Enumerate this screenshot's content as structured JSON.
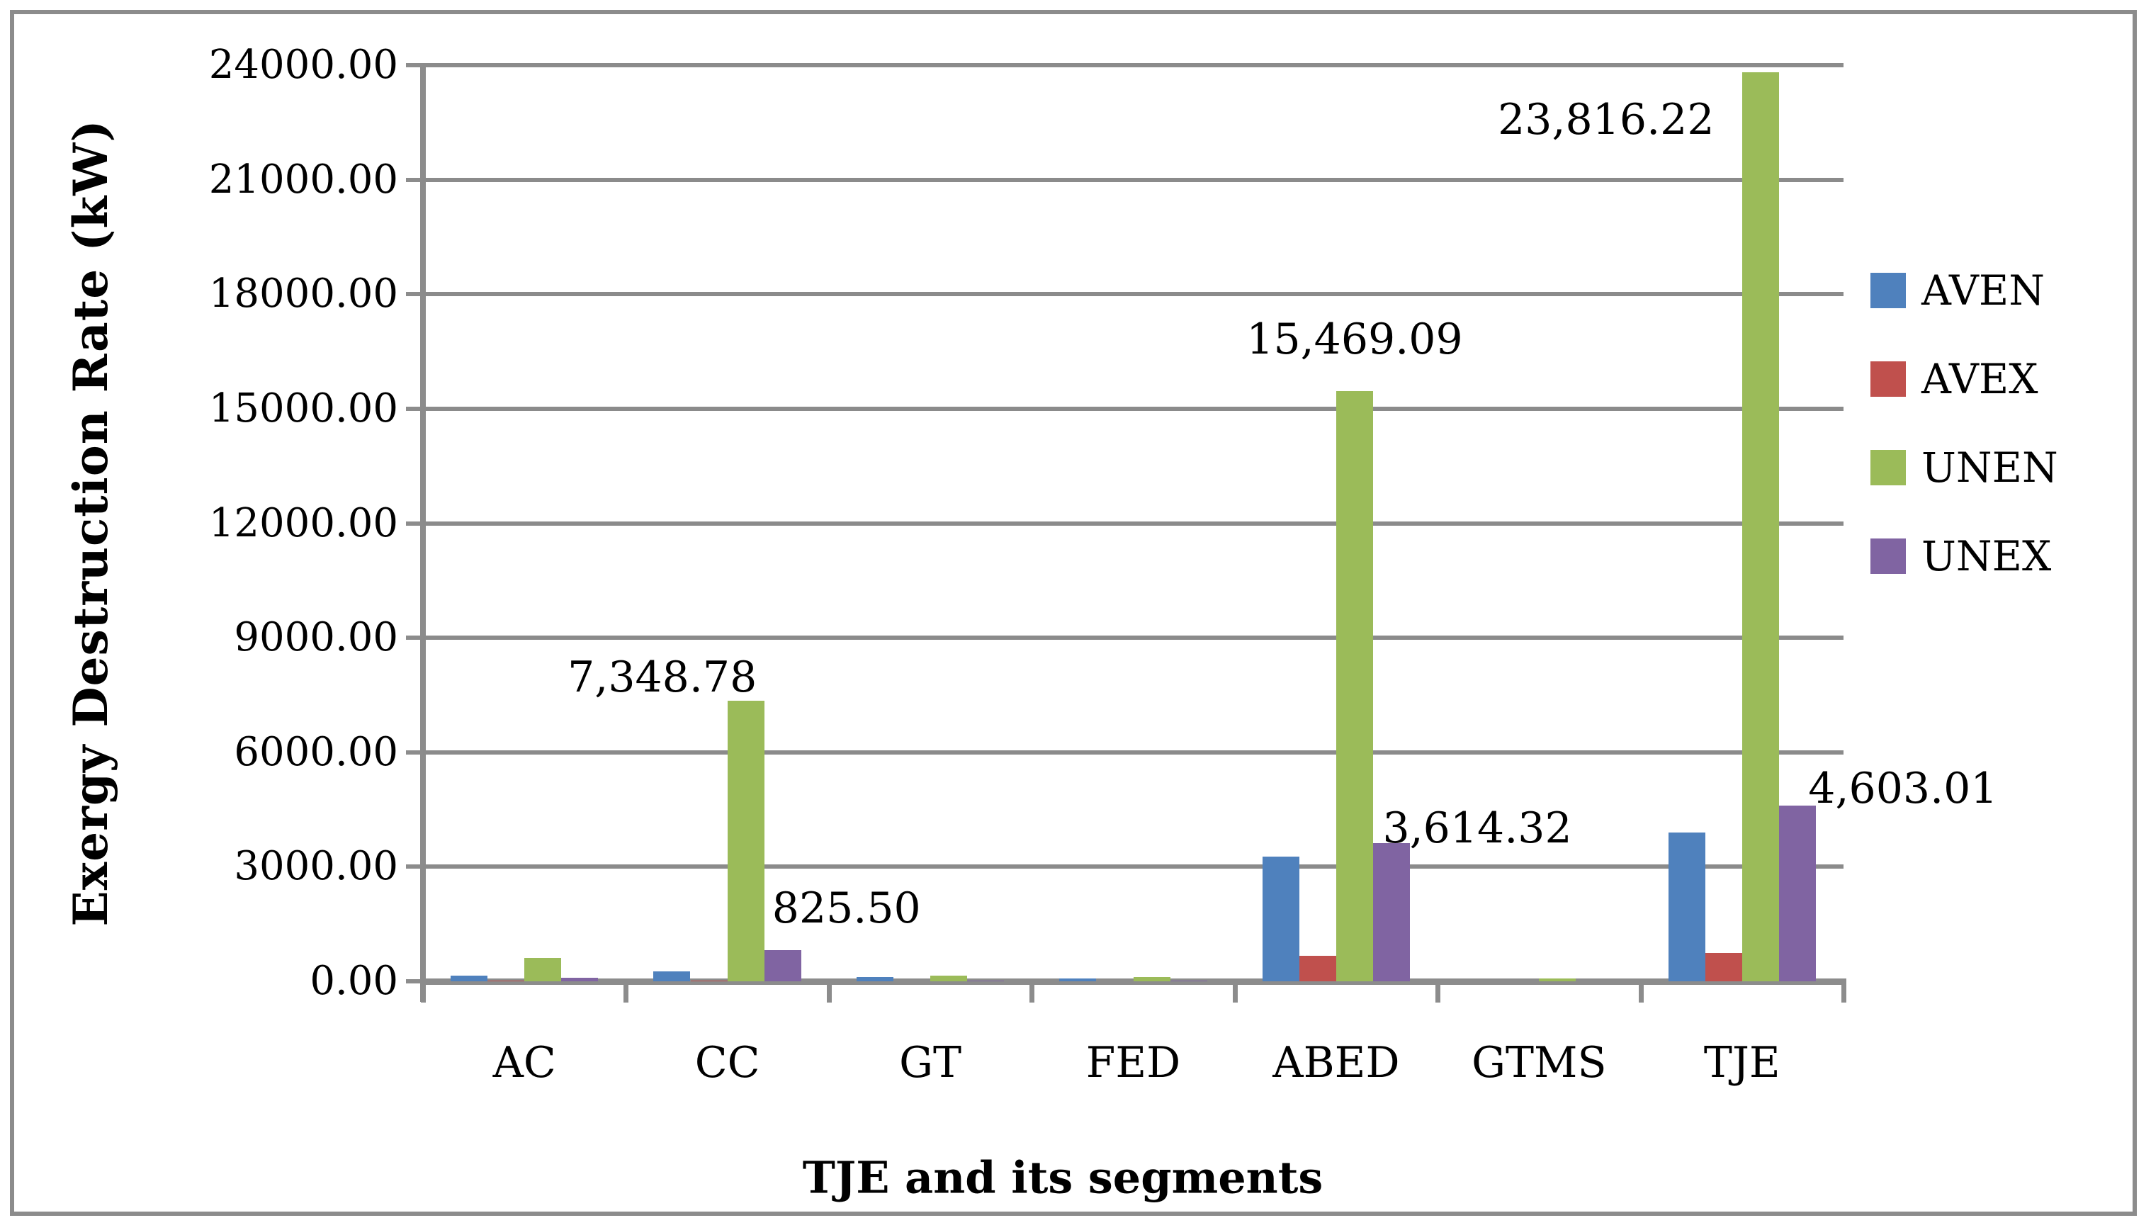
{
  "figure": {
    "y_axis_title": "Exergy Destruction Rate (kW)",
    "x_axis_title": "TJE and its segments"
  },
  "chart_data": {
    "type": "bar",
    "title": "",
    "xlabel": "TJE and its segments",
    "ylabel": "Exergy Destruction Rate (kW)",
    "categories": [
      "AC",
      "CC",
      "GT",
      "FED",
      "ABED",
      "GTMS",
      "TJE"
    ],
    "series": [
      {
        "name": "AVEN",
        "color": "#4F81BD",
        "values": [
          150,
          260,
          110,
          75,
          3270,
          5,
          3900
        ]
      },
      {
        "name": "AVEX",
        "color": "#C0504D",
        "values": [
          10,
          15,
          5,
          5,
          665,
          2,
          740
        ]
      },
      {
        "name": "UNEN",
        "color": "#9BBB59",
        "values": [
          610,
          7348.78,
          150,
          120,
          15469.09,
          65,
          23816.22
        ]
      },
      {
        "name": "UNEX",
        "color": "#8064A2",
        "values": [
          90,
          825.5,
          10,
          10,
          3614.32,
          5,
          4603.01
        ]
      }
    ],
    "data_labels": [
      {
        "category": "CC",
        "series": "UNEN",
        "text": "7,348.78"
      },
      {
        "category": "CC",
        "series": "UNEX",
        "text": "825.50"
      },
      {
        "category": "ABED",
        "series": "UNEN",
        "text": "15,469.09"
      },
      {
        "category": "ABED",
        "series": "UNEX",
        "text": "3,614.32"
      },
      {
        "category": "TJE",
        "series": "UNEN",
        "text": "23,816.22"
      },
      {
        "category": "TJE",
        "series": "UNEX",
        "text": "4,603.01"
      }
    ],
    "y_ticks": [
      "0.00",
      "3000.00",
      "6000.00",
      "9000.00",
      "12000.00",
      "15000.00",
      "18000.00",
      "21000.00",
      "24000.00"
    ],
    "ylim": [
      0,
      24000
    ],
    "y_step": 3000,
    "grid": true,
    "legend_position": "right",
    "legend_entries": [
      "AVEN",
      "AVEX",
      "UNEN",
      "UNEX"
    ]
  }
}
